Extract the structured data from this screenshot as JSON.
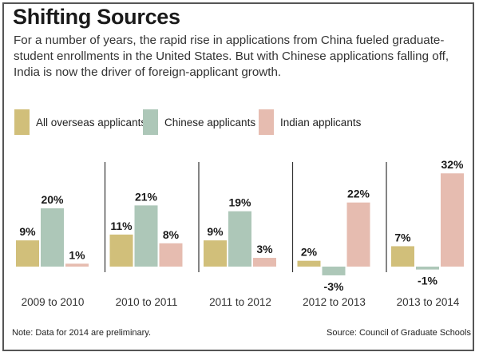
{
  "header": {
    "title": "Shifting Sources",
    "description": "For a number of years, the rapid rise in applications from China fueled graduate-student enrollments in the United States. But with Chinese applications falling off, India is now the driver of foreign-applicant growth."
  },
  "footer": {
    "note": "Note: Data for 2014 are preliminary.",
    "source": "Source: Council of Graduate Schools"
  },
  "chart_data": {
    "type": "bar",
    "title": "Shifting Sources",
    "categories": [
      "2009 to 2010",
      "2010 to 2011",
      "2011 to 2012",
      "2012 to 2013",
      "2013 to 2014"
    ],
    "series": [
      {
        "name": "All overseas applicants",
        "color": "#d1bf7a",
        "values": [
          9,
          11,
          9,
          2,
          7
        ],
        "labels": [
          "9%",
          "11%",
          "9%",
          "2%",
          "7%"
        ]
      },
      {
        "name": "Chinese applicants",
        "color": "#adc7b8",
        "values": [
          20,
          21,
          19,
          -3,
          -1
        ],
        "labels": [
          "20%",
          "21%",
          "19%",
          "-3%",
          "-1%"
        ]
      },
      {
        "name": "Indian applicants",
        "color": "#e6bcb0",
        "values": [
          1,
          8,
          3,
          22,
          32
        ],
        "labels": [
          "1%",
          "8%",
          "3%",
          "22%",
          "32%"
        ]
      }
    ],
    "ylabel": "",
    "xlabel": "",
    "grid": false,
    "legend": "top-left"
  }
}
